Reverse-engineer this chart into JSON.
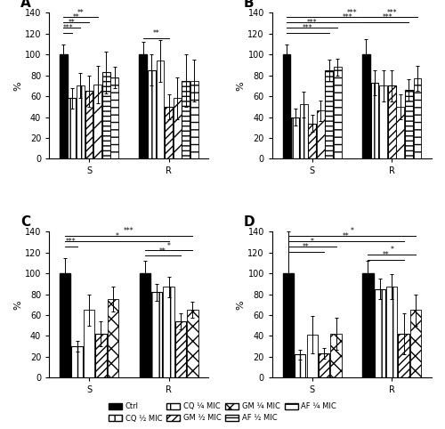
{
  "panels": {
    "A": {
      "title": "A",
      "groups": [
        "S",
        "R"
      ],
      "bars": {
        "S": [
          100,
          58,
          70,
          65,
          71,
          83,
          78
        ],
        "R": [
          100,
          85,
          94,
          50,
          58,
          75,
          75
        ]
      },
      "errors": {
        "S": [
          10,
          10,
          12,
          15,
          18,
          20,
          10
        ],
        "R": [
          12,
          15,
          20,
          12,
          20,
          25,
          20
        ]
      },
      "sig_lines": [
        {
          "y": 136,
          "g1": 0,
          "b1": 0,
          "g2": 0,
          "b2": 4,
          "label": "**"
        },
        {
          "y": 131,
          "g1": 0,
          "b1": 0,
          "g2": 0,
          "b2": 3,
          "label": "**"
        },
        {
          "y": 126,
          "g1": 0,
          "b1": 0,
          "g2": 0,
          "b2": 2,
          "label": "**"
        },
        {
          "y": 121,
          "g1": 0,
          "b1": 0,
          "g2": 0,
          "b2": 1,
          "label": "***"
        },
        {
          "y": 116,
          "g1": 1,
          "b1": 0,
          "g2": 1,
          "b2": 3,
          "label": "**"
        }
      ]
    },
    "B": {
      "title": "B",
      "groups": [
        "S",
        "R"
      ],
      "bars": {
        "S": [
          100,
          40,
          52,
          34,
          46,
          85,
          88
        ],
        "R": [
          100,
          73,
          70,
          70,
          50,
          66,
          77
        ]
      },
      "errors": {
        "S": [
          10,
          8,
          12,
          8,
          10,
          10,
          8
        ],
        "R": [
          15,
          12,
          15,
          15,
          12,
          10,
          12
        ]
      },
      "sig_lines": [
        {
          "y": 136,
          "g1": 0,
          "b1": 0,
          "g2": 1,
          "b2": 6,
          "label": "***"
        },
        {
          "y": 131,
          "g1": 0,
          "b1": 0,
          "g2": 1,
          "b2": 5,
          "label": "***"
        },
        {
          "y": 126,
          "g1": 0,
          "b1": 0,
          "g2": 0,
          "b2": 6,
          "label": "***"
        },
        {
          "y": 121,
          "g1": 0,
          "b1": 0,
          "g2": 0,
          "b2": 5,
          "label": "***"
        },
        {
          "y": 136,
          "g1": 1,
          "b1": 0,
          "g2": 1,
          "b2": 6,
          "label": "***"
        },
        {
          "y": 131,
          "g1": 1,
          "b1": 0,
          "g2": 1,
          "b2": 5,
          "label": "***"
        }
      ]
    },
    "C": {
      "title": "C",
      "groups": [
        "S",
        "R"
      ],
      "bars": {
        "S": [
          100,
          30,
          65,
          42,
          75
        ],
        "R": [
          100,
          82,
          87,
          54,
          65
        ]
      },
      "errors": {
        "S": [
          15,
          5,
          15,
          12,
          12
        ],
        "R": [
          12,
          8,
          10,
          8,
          8
        ]
      },
      "sig_lines": [
        {
          "y": 136,
          "g1": 0,
          "b1": 0,
          "g2": 1,
          "b2": 4,
          "label": "***"
        },
        {
          "y": 131,
          "g1": 0,
          "b1": 0,
          "g2": 1,
          "b2": 2,
          "label": "*"
        },
        {
          "y": 126,
          "g1": 0,
          "b1": 0,
          "g2": 0,
          "b2": 1,
          "label": "***"
        },
        {
          "y": 122,
          "g1": 1,
          "b1": 0,
          "g2": 1,
          "b2": 4,
          "label": "*"
        },
        {
          "y": 117,
          "g1": 1,
          "b1": 0,
          "g2": 1,
          "b2": 3,
          "label": "**"
        }
      ]
    },
    "D": {
      "title": "D",
      "groups": [
        "S",
        "R"
      ],
      "bars": {
        "S": [
          100,
          22,
          41,
          23,
          42
        ],
        "R": [
          100,
          85,
          87,
          42,
          65
        ]
      },
      "errors": {
        "S": [
          40,
          5,
          18,
          5,
          15
        ],
        "R": [
          12,
          10,
          12,
          20,
          15
        ]
      },
      "sig_lines": [
        {
          "y": 136,
          "g1": 0,
          "b1": 0,
          "g2": 1,
          "b2": 4,
          "label": "*"
        },
        {
          "y": 131,
          "g1": 0,
          "b1": 0,
          "g2": 1,
          "b2": 3,
          "label": "**"
        },
        {
          "y": 126,
          "g1": 0,
          "b1": 0,
          "g2": 0,
          "b2": 4,
          "label": "*"
        },
        {
          "y": 121,
          "g1": 0,
          "b1": 0,
          "g2": 0,
          "b2": 3,
          "label": "**"
        },
        {
          "y": 118,
          "g1": 1,
          "b1": 0,
          "g2": 1,
          "b2": 4,
          "label": "*"
        },
        {
          "y": 113,
          "g1": 1,
          "b1": 0,
          "g2": 1,
          "b2": 3,
          "label": "**"
        }
      ]
    }
  },
  "ylim": [
    0,
    140
  ],
  "yticks": [
    0,
    20,
    40,
    60,
    80,
    100,
    120,
    140
  ],
  "ylabel": "%"
}
